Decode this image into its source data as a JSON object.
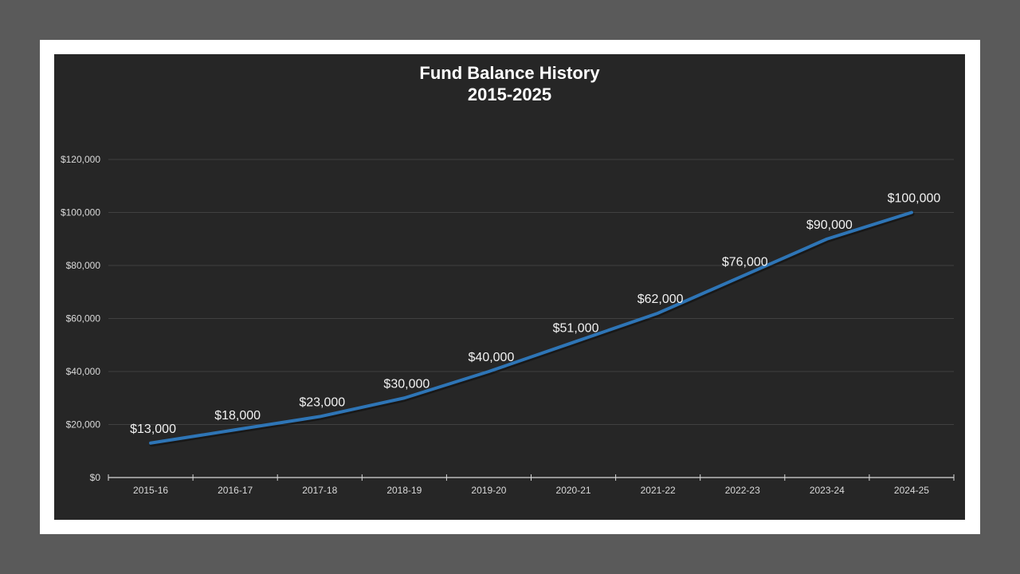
{
  "chart_data": {
    "type": "line",
    "title": "Fund Balance History",
    "subtitle": "2015-2025",
    "xlabel": "",
    "ylabel": "",
    "categories": [
      "2015-16",
      "2016-17",
      "2017-18",
      "2018-19",
      "2019-20",
      "2020-21",
      "2021-22",
      "2022-23",
      "2023-24",
      "2024-25"
    ],
    "series": [
      {
        "name": "Fund Balance",
        "values": [
          13000,
          18000,
          23000,
          30000,
          40000,
          51000,
          62000,
          76000,
          90000,
          100000
        ],
        "data_labels": [
          "$13,000",
          "$18,000",
          "$23,000",
          "$30,000",
          "$40,000",
          "$51,000",
          "$62,000",
          "$76,000",
          "$90,000",
          "$100,000"
        ]
      }
    ],
    "ylim": [
      0,
      120000
    ],
    "yticks": [
      0,
      20000,
      40000,
      60000,
      80000,
      100000,
      120000
    ],
    "ytick_labels": [
      "$0",
      "$20,000",
      "$40,000",
      "$60,000",
      "$80,000",
      "$100,000",
      "$120,000"
    ],
    "grid": true,
    "legend": "none"
  },
  "colors": {
    "page_background": "#5a5a5a",
    "frame": "#ffffff",
    "chart_background": "#262626",
    "line": "#2e75b6",
    "gridline": "#404040",
    "axis": "#d9d9d9",
    "text": "#ffffff"
  }
}
